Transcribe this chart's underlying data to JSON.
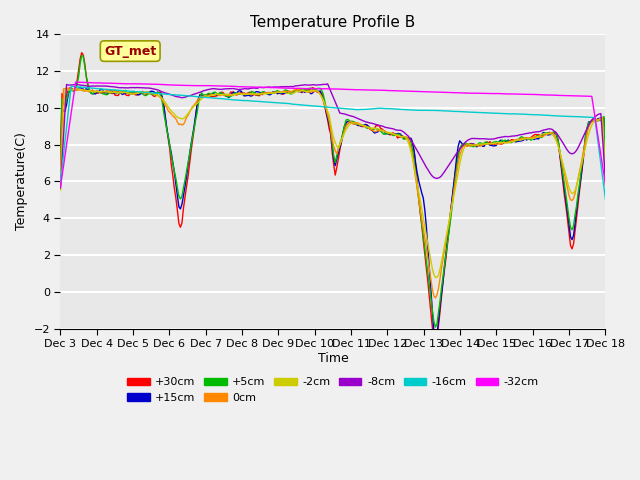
{
  "title": "Temperature Profile B",
  "xlabel": "Time",
  "ylabel": "Temperature(C)",
  "xlim": [
    0,
    360
  ],
  "ylim": [
    -2,
    14
  ],
  "yticks": [
    -2,
    0,
    2,
    4,
    6,
    8,
    10,
    12,
    14
  ],
  "xtick_labels": [
    "Dec 3",
    "Dec 4",
    "Dec 5",
    "Dec 6",
    "Dec 7",
    "Dec 8",
    "Dec 9",
    "Dec 10",
    "Dec 11",
    "Dec 12",
    "Dec 13",
    "Dec 14",
    "Dec 15",
    "Dec 16",
    "Dec 17",
    "Dec 18"
  ],
  "series_colors": {
    "+30cm": "#ff0000",
    "+15cm": "#0000cc",
    "+5cm": "#00bb00",
    "0cm": "#ff8800",
    "-2cm": "#cccc00",
    "-8cm": "#9900cc",
    "-16cm": "#00cccc",
    "-32cm": "#ff00ff"
  },
  "legend_label": "GT_met",
  "background_color": "#e8e8e8",
  "grid_color": "#ffffff",
  "annotation_bg": "#ffff99",
  "annotation_text_color": "#990000"
}
